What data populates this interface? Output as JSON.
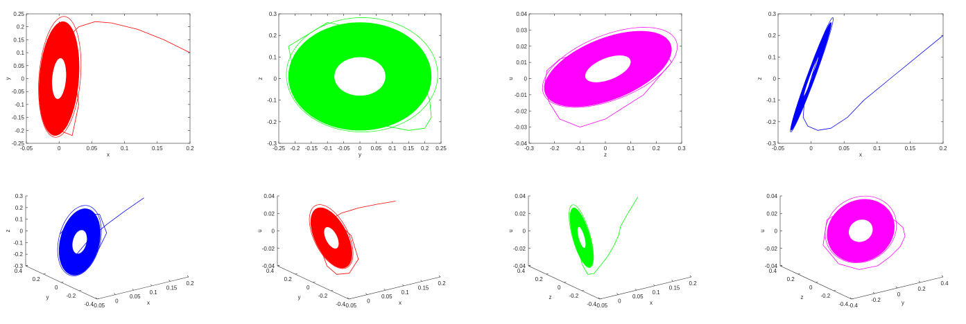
{
  "chart_data": {
    "type": "line",
    "title": "",
    "legend": "none",
    "attractor_model": {
      "description": "ring = offset + cos_coef*cos(t) + sin_coef*sin(t); hole scaled by inner_scale",
      "x": {
        "offset": 0,
        "cos": 0.006,
        "sin": 0.03
      },
      "y": {
        "offset": 0,
        "cos": 0.22,
        "sin": 0
      },
      "z": {
        "offset": 0.01,
        "cos": 0,
        "sin": 0.25
      },
      "u": {
        "offset": 0.006,
        "cos": 0.02,
        "sin": 0.012
      },
      "inner_scale": 0.36
    },
    "transient": {
      "vars": [
        "x",
        "y",
        "z",
        "u"
      ],
      "points": [
        [
          0.2,
          0.1,
          0.2,
          0.023
        ],
        [
          0.16,
          0.15,
          0.1,
          0.021
        ],
        [
          0.12,
          0.19,
          0.0,
          0.019
        ],
        [
          0.08,
          0.215,
          -0.1,
          0.016
        ],
        [
          0.055,
          0.22,
          -0.18,
          0.012
        ],
        [
          0.03,
          0.2,
          -0.23,
          0.005
        ],
        [
          0.01,
          0.15,
          -0.24,
          -0.005
        ],
        [
          -0.005,
          0.08,
          -0.22,
          -0.015
        ],
        [
          -0.012,
          0.0,
          -0.18,
          -0.025
        ],
        [
          -0.01,
          -0.1,
          -0.1,
          -0.03
        ],
        [
          0.0,
          -0.2,
          0.0,
          -0.025
        ],
        [
          0.02,
          -0.22,
          0.15,
          -0.01
        ],
        [
          0.03,
          -0.1,
          0.26,
          0.01
        ],
        [
          0.02,
          0.1,
          0.2,
          0.025
        ],
        [
          0.0,
          0.22,
          0.0,
          0.02
        ]
      ]
    },
    "panels": [
      {
        "kind": "2d",
        "color": "#ff0000",
        "xvar": "x",
        "yvar": "y",
        "xlabel": "x",
        "ylabel": "y",
        "xlim": [
          -0.05,
          0.2
        ],
        "ylim": [
          -0.25,
          0.25
        ],
        "xticks": [
          "-0.05",
          "0",
          "0.05",
          "0.1",
          "0.15",
          "0.2"
        ],
        "yticks": [
          "-0.25",
          "-0.2",
          "-0.15",
          "-0.1",
          "-0.05",
          "0",
          "0.05",
          "0.1",
          "0.15",
          "0.2",
          "0.25"
        ]
      },
      {
        "kind": "2d",
        "color": "#00ff00",
        "xvar": "y",
        "yvar": "z",
        "xlabel": "y",
        "ylabel": "z",
        "xlim": [
          -0.25,
          0.25
        ],
        "ylim": [
          -0.3,
          0.3
        ],
        "xticks": [
          "-0.25",
          "-0.2",
          "-0.15",
          "-0.1",
          "-0.05",
          "0",
          "0.05",
          "0.1",
          "0.15",
          "0.2",
          "0.25"
        ],
        "yticks": [
          "-0.3",
          "-0.2",
          "-0.1",
          "0",
          "0.1",
          "0.2",
          "0.3"
        ]
      },
      {
        "kind": "2d",
        "color": "#ff00ff",
        "xvar": "z",
        "yvar": "u",
        "xlabel": "z",
        "ylabel": "u",
        "xlim": [
          -0.3,
          0.3
        ],
        "ylim": [
          -0.04,
          0.04
        ],
        "xticks": [
          "-0.3",
          "-0.2",
          "-0.1",
          "0",
          "0.1",
          "0.2",
          "0.3"
        ],
        "yticks": [
          "-0.04",
          "-0.03",
          "-0.02",
          "-0.01",
          "0",
          "0.01",
          "0.02",
          "0.03",
          "0.04"
        ]
      },
      {
        "kind": "2d",
        "color": "#0000ff",
        "xvar": "x",
        "yvar": "z",
        "xlabel": "x",
        "ylabel": "z",
        "xlim": [
          -0.05,
          0.2
        ],
        "ylim": [
          -0.3,
          0.3
        ],
        "xticks": [
          "-0.05",
          "0",
          "0.05",
          "0.1",
          "0.15",
          "0.2"
        ],
        "yticks": [
          "-0.3",
          "-0.2",
          "-0.1",
          "0",
          "0.1",
          "0.2",
          "0.3"
        ]
      },
      {
        "kind": "3d",
        "color": "#0000ff",
        "vars": [
          "x",
          "y",
          "z"
        ],
        "labels": [
          "x",
          "y",
          "z"
        ],
        "lims": [
          [
            -0.05,
            0.2
          ],
          [
            -0.4,
            0.4
          ],
          [
            -0.3,
            0.3
          ]
        ],
        "ticks": [
          [
            "-0.05",
            "0",
            "0.05",
            "0.1",
            "0.15",
            "0.2"
          ],
          [
            "-0.4",
            "-0.2",
            "0",
            "0.2",
            "0.4"
          ],
          [
            "-0.3",
            "-0.2",
            "-0.1",
            "0",
            "0.1",
            "0.2",
            "0.3"
          ]
        ]
      },
      {
        "kind": "3d",
        "color": "#ff0000",
        "vars": [
          "x",
          "y",
          "u"
        ],
        "labels": [
          "x",
          "y",
          "u"
        ],
        "lims": [
          [
            -0.05,
            0.2
          ],
          [
            -0.4,
            0.4
          ],
          [
            -0.04,
            0.04
          ]
        ],
        "ticks": [
          [
            "-0.05",
            "0",
            "0.05",
            "0.1",
            "0.15",
            "0.2"
          ],
          [
            "-0.4",
            "-0.2",
            "0",
            "0.2",
            "0.4"
          ],
          [
            "-0.04",
            "-0.02",
            "0",
            "0.02",
            "0.04"
          ]
        ]
      },
      {
        "kind": "3d",
        "color": "#00ff00",
        "vars": [
          "x",
          "z",
          "u"
        ],
        "labels": [
          "x",
          "z",
          "u"
        ],
        "lims": [
          [
            -0.05,
            0.2
          ],
          [
            -0.4,
            0.4
          ],
          [
            -0.04,
            0.04
          ]
        ],
        "ticks": [
          [
            "-0.05",
            "0",
            "0.05",
            "0.1",
            "0.15",
            "0.2"
          ],
          [
            "-0.4",
            "-0.2",
            "0",
            "0.2",
            "0.4"
          ],
          [
            "-0.04",
            "-0.02",
            "0",
            "0.02",
            "0.04"
          ]
        ]
      },
      {
        "kind": "3d",
        "color": "#ff00ff",
        "vars": [
          "y",
          "z",
          "u"
        ],
        "labels": [
          "y",
          "z",
          "u"
        ],
        "lims": [
          [
            -0.4,
            0.4
          ],
          [
            -0.4,
            0.4
          ],
          [
            -0.04,
            0.04
          ]
        ],
        "ticks": [
          [
            "-0.4",
            "-0.2",
            "0",
            "0.2",
            "0.4"
          ],
          [
            "-0.4",
            "-0.2",
            "0",
            "0.2",
            "0.4"
          ],
          [
            "-0.04",
            "-0.02",
            "0",
            "0.02",
            "0.04"
          ]
        ]
      }
    ]
  }
}
